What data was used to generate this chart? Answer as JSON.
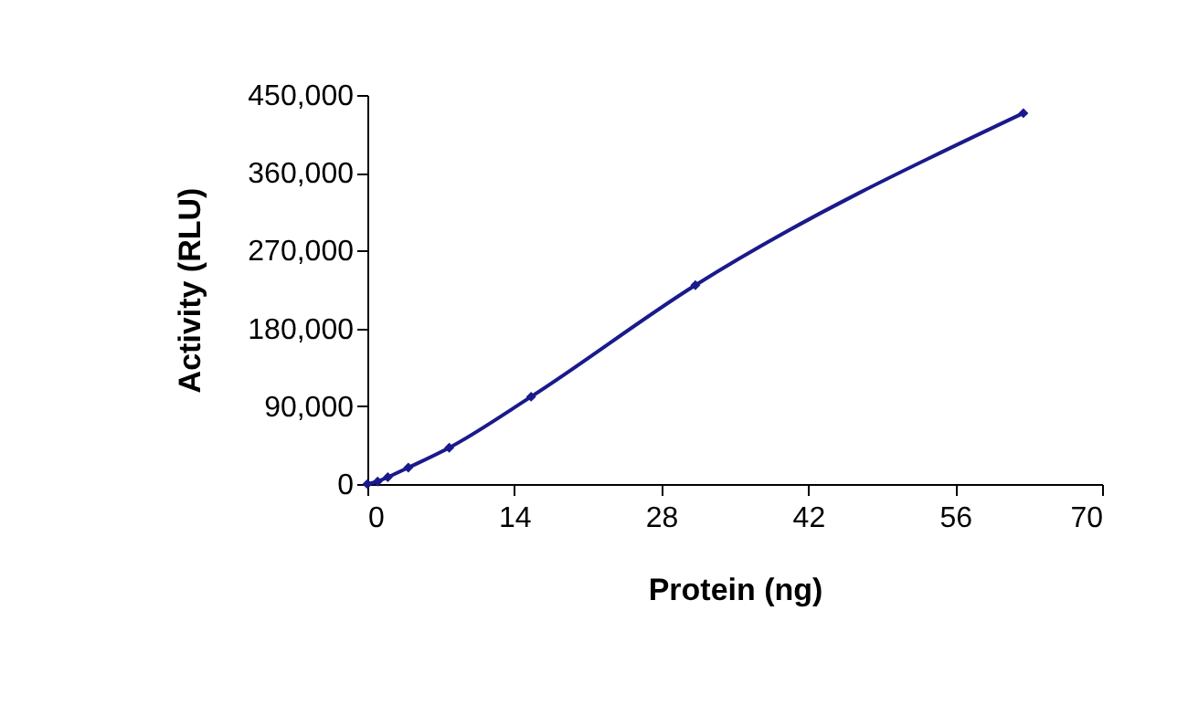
{
  "chart_data": {
    "type": "line",
    "xlabel": "Protein (ng)",
    "ylabel": "Activity (RLU)",
    "x": [
      0,
      0.98,
      1.95,
      3.9,
      7.8,
      15.6,
      31.25,
      62.5
    ],
    "series": [
      {
        "color": "#1a1a8c",
        "values": [
          0,
          3000,
          8000,
          19000,
          42000,
          101000,
          230000,
          429000
        ]
      }
    ],
    "xlim": [
      0,
      70
    ],
    "xticks": [
      0,
      14,
      28,
      42,
      56,
      70
    ],
    "ylim": [
      0,
      450000
    ],
    "yticks": [
      0,
      {
        "value": 90000,
        "label": "90,000"
      },
      {
        "value": 180000,
        "label": "180,000"
      },
      {
        "value": 270000,
        "label": "270,000"
      },
      {
        "value": 360000,
        "label": "360,000"
      },
      {
        "value": 450000,
        "label": "450,000"
      }
    ],
    "grid": false,
    "marker": "diamond",
    "line_style": "solid"
  }
}
